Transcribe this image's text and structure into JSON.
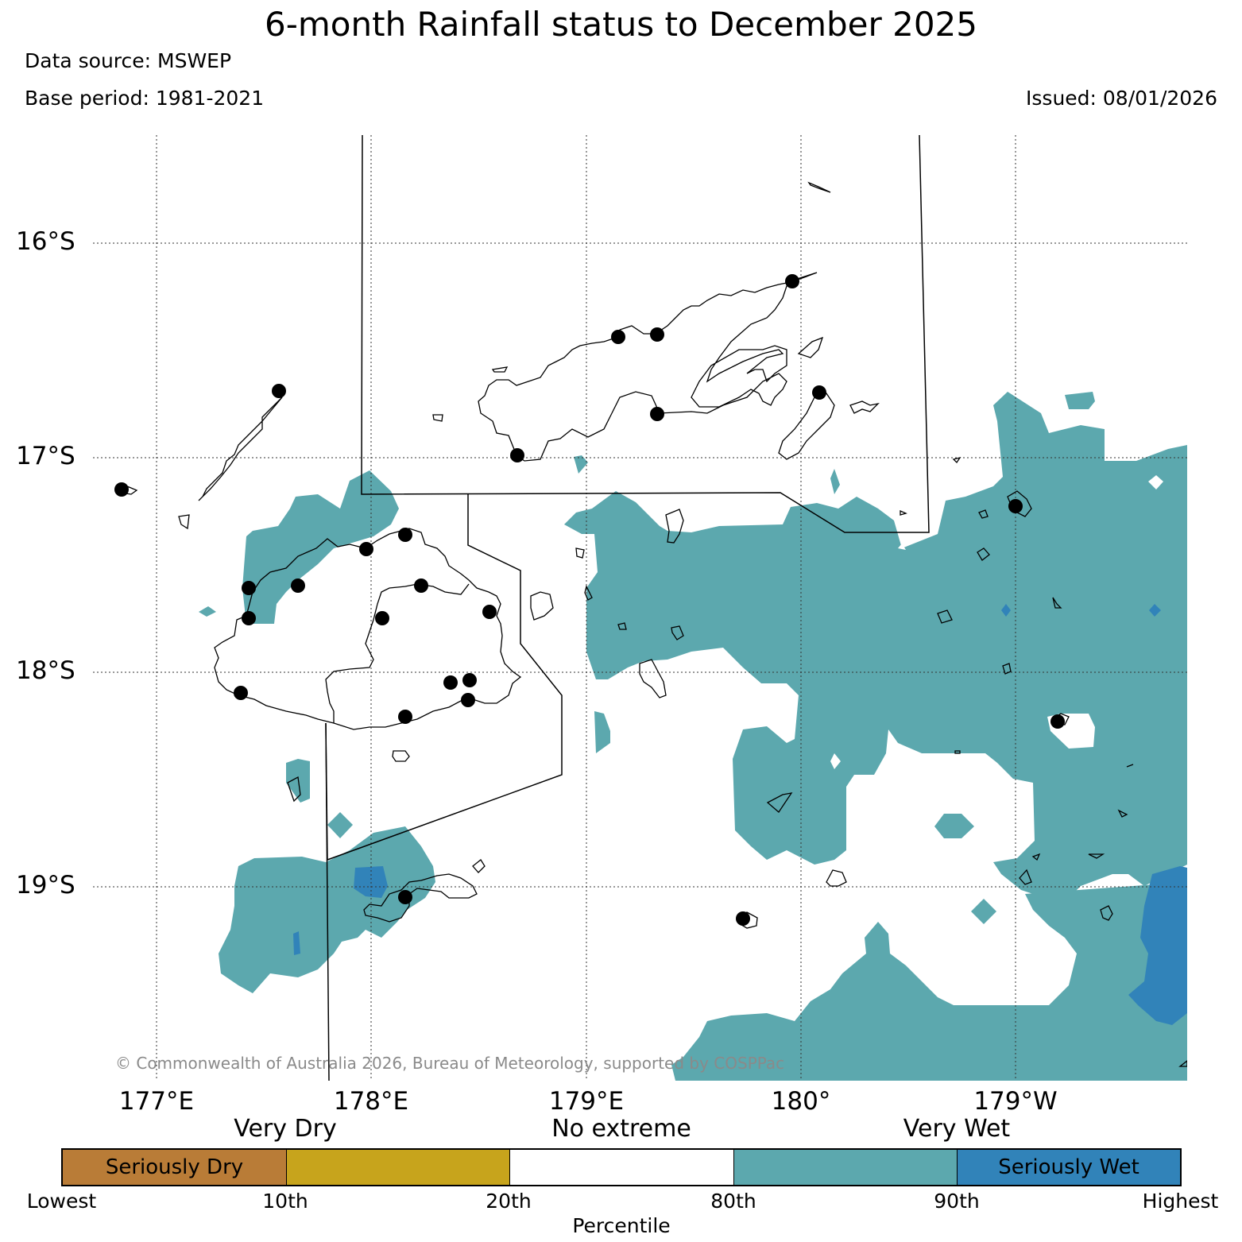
{
  "header": {
    "title": "6-month Rainfall status to December 2025",
    "data_source": "Data source: MSWEP",
    "base_period": "Base period: 1981-2021",
    "issued": "Issued: 08/01/2026"
  },
  "map": {
    "lon_labels": [
      "177°E",
      "178°E",
      "179°E",
      "180°",
      "179°W"
    ],
    "lat_labels": [
      "16°S",
      "17°S",
      "18°S",
      "19°S"
    ],
    "credit": "© Commonwealth of Australia 2026, Bureau of Meteorology, supported by COSPPac",
    "colors": {
      "very_wet": "#5ca8ae",
      "seriously_wet": "#3183b9",
      "coastline": "#000000",
      "station": "#000000"
    }
  },
  "legend": {
    "groups": [
      "Very Dry",
      "No extreme",
      "Very Wet"
    ],
    "segments": [
      {
        "label": "Seriously Dry",
        "color": "#b97c37"
      },
      {
        "label": "",
        "color": "#c7a41c"
      },
      {
        "label": "",
        "color": "#ffffff"
      },
      {
        "label": "",
        "color": "#5ca8ae"
      },
      {
        "label": "Seriously Wet",
        "color": "#3183b9"
      }
    ],
    "percentiles": [
      "Lowest",
      "10th",
      "20th",
      "80th",
      "90th",
      "Highest"
    ],
    "axis_label": "Percentile"
  }
}
